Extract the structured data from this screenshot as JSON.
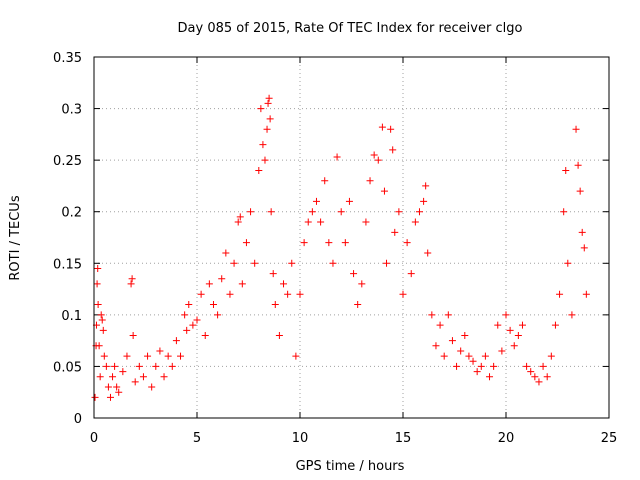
{
  "chart_data": {
    "type": "scatter",
    "title": "Day 085 of 2015, Rate Of TEC Index for receiver clgo",
    "xlabel": "GPS time / hours",
    "ylabel": "ROTI / TECUs",
    "xlim": [
      0,
      25
    ],
    "ylim": [
      0,
      0.35
    ],
    "xticks": [
      0,
      5,
      10,
      15,
      20,
      25
    ],
    "yticks": [
      0,
      0.05,
      0.1,
      0.15,
      0.2,
      0.25,
      0.3,
      0.35
    ],
    "xtick_labels": [
      "0",
      "5",
      "10",
      "15",
      "20",
      "25"
    ],
    "ytick_labels": [
      "0",
      "0.05",
      "0.1",
      "0.15",
      "0.2",
      "0.25",
      "0.3",
      "0.35"
    ],
    "grid": true,
    "legend": "none",
    "marker": "+",
    "color": "#ff0000",
    "series": [
      {
        "values": [
          [
            0.05,
            0.02
          ],
          [
            0.1,
            0.07
          ],
          [
            0.12,
            0.09
          ],
          [
            0.15,
            0.13
          ],
          [
            0.18,
            0.145
          ],
          [
            0.2,
            0.11
          ],
          [
            0.25,
            0.07
          ],
          [
            0.3,
            0.04
          ],
          [
            0.35,
            0.1
          ],
          [
            0.4,
            0.095
          ],
          [
            0.45,
            0.085
          ],
          [
            0.5,
            0.06
          ],
          [
            0.6,
            0.05
          ],
          [
            0.7,
            0.03
          ],
          [
            0.8,
            0.02
          ],
          [
            0.9,
            0.04
          ],
          [
            1.0,
            0.05
          ],
          [
            1.1,
            0.03
          ],
          [
            1.2,
            0.025
          ],
          [
            1.4,
            0.045
          ],
          [
            1.6,
            0.06
          ],
          [
            1.8,
            0.13
          ],
          [
            1.85,
            0.135
          ],
          [
            1.9,
            0.08
          ],
          [
            2.0,
            0.035
          ],
          [
            2.2,
            0.05
          ],
          [
            2.4,
            0.04
          ],
          [
            2.6,
            0.06
          ],
          [
            2.8,
            0.03
          ],
          [
            3.0,
            0.05
          ],
          [
            3.2,
            0.065
          ],
          [
            3.4,
            0.04
          ],
          [
            3.6,
            0.06
          ],
          [
            3.8,
            0.05
          ],
          [
            4.0,
            0.075
          ],
          [
            4.2,
            0.06
          ],
          [
            4.4,
            0.1
          ],
          [
            4.5,
            0.085
          ],
          [
            4.6,
            0.11
          ],
          [
            4.8,
            0.09
          ],
          [
            5.0,
            0.095
          ],
          [
            5.2,
            0.12
          ],
          [
            5.4,
            0.08
          ],
          [
            5.6,
            0.13
          ],
          [
            5.8,
            0.11
          ],
          [
            6.0,
            0.1
          ],
          [
            6.2,
            0.135
          ],
          [
            6.4,
            0.16
          ],
          [
            6.6,
            0.12
          ],
          [
            6.8,
            0.15
          ],
          [
            7.0,
            0.19
          ],
          [
            7.1,
            0.195
          ],
          [
            7.2,
            0.13
          ],
          [
            7.4,
            0.17
          ],
          [
            7.6,
            0.2
          ],
          [
            7.8,
            0.15
          ],
          [
            8.0,
            0.24
          ],
          [
            8.1,
            0.3
          ],
          [
            8.2,
            0.265
          ],
          [
            8.3,
            0.25
          ],
          [
            8.4,
            0.28
          ],
          [
            8.45,
            0.305
          ],
          [
            8.5,
            0.31
          ],
          [
            8.55,
            0.29
          ],
          [
            8.6,
            0.2
          ],
          [
            8.7,
            0.14
          ],
          [
            8.8,
            0.11
          ],
          [
            9.0,
            0.08
          ],
          [
            9.2,
            0.13
          ],
          [
            9.4,
            0.12
          ],
          [
            9.6,
            0.15
          ],
          [
            9.8,
            0.06
          ],
          [
            10.0,
            0.12
          ],
          [
            10.2,
            0.17
          ],
          [
            10.4,
            0.19
          ],
          [
            10.6,
            0.2
          ],
          [
            10.8,
            0.21
          ],
          [
            11.0,
            0.19
          ],
          [
            11.2,
            0.23
          ],
          [
            11.4,
            0.17
          ],
          [
            11.6,
            0.15
          ],
          [
            11.8,
            0.253
          ],
          [
            12.0,
            0.2
          ],
          [
            12.2,
            0.17
          ],
          [
            12.4,
            0.21
          ],
          [
            12.6,
            0.14
          ],
          [
            12.8,
            0.11
          ],
          [
            13.0,
            0.13
          ],
          [
            13.2,
            0.19
          ],
          [
            13.4,
            0.23
          ],
          [
            13.6,
            0.255
          ],
          [
            13.8,
            0.25
          ],
          [
            14.0,
            0.282
          ],
          [
            14.1,
            0.22
          ],
          [
            14.2,
            0.15
          ],
          [
            14.4,
            0.28
          ],
          [
            14.5,
            0.26
          ],
          [
            14.6,
            0.18
          ],
          [
            14.8,
            0.2
          ],
          [
            15.0,
            0.12
          ],
          [
            15.2,
            0.17
          ],
          [
            15.4,
            0.14
          ],
          [
            15.6,
            0.19
          ],
          [
            15.8,
            0.2
          ],
          [
            16.0,
            0.21
          ],
          [
            16.1,
            0.225
          ],
          [
            16.2,
            0.16
          ],
          [
            16.4,
            0.1
          ],
          [
            16.6,
            0.07
          ],
          [
            16.8,
            0.09
          ],
          [
            17.0,
            0.06
          ],
          [
            17.2,
            0.1
          ],
          [
            17.4,
            0.075
          ],
          [
            17.6,
            0.05
          ],
          [
            17.8,
            0.065
          ],
          [
            18.0,
            0.08
          ],
          [
            18.2,
            0.06
          ],
          [
            18.4,
            0.055
          ],
          [
            18.6,
            0.045
          ],
          [
            18.8,
            0.05
          ],
          [
            19.0,
            0.06
          ],
          [
            19.2,
            0.04
          ],
          [
            19.4,
            0.05
          ],
          [
            19.6,
            0.09
          ],
          [
            19.8,
            0.065
          ],
          [
            20.0,
            0.1
          ],
          [
            20.2,
            0.085
          ],
          [
            20.4,
            0.07
          ],
          [
            20.6,
            0.08
          ],
          [
            20.8,
            0.09
          ],
          [
            21.0,
            0.05
          ],
          [
            21.2,
            0.045
          ],
          [
            21.4,
            0.04
          ],
          [
            21.6,
            0.035
          ],
          [
            21.8,
            0.05
          ],
          [
            22.0,
            0.04
          ],
          [
            22.2,
            0.06
          ],
          [
            22.4,
            0.09
          ],
          [
            22.6,
            0.12
          ],
          [
            22.8,
            0.2
          ],
          [
            22.9,
            0.24
          ],
          [
            23.0,
            0.15
          ],
          [
            23.2,
            0.1
          ],
          [
            23.4,
            0.28
          ],
          [
            23.5,
            0.245
          ],
          [
            23.6,
            0.22
          ],
          [
            23.7,
            0.18
          ],
          [
            23.8,
            0.165
          ],
          [
            23.9,
            0.12
          ]
        ]
      }
    ]
  }
}
